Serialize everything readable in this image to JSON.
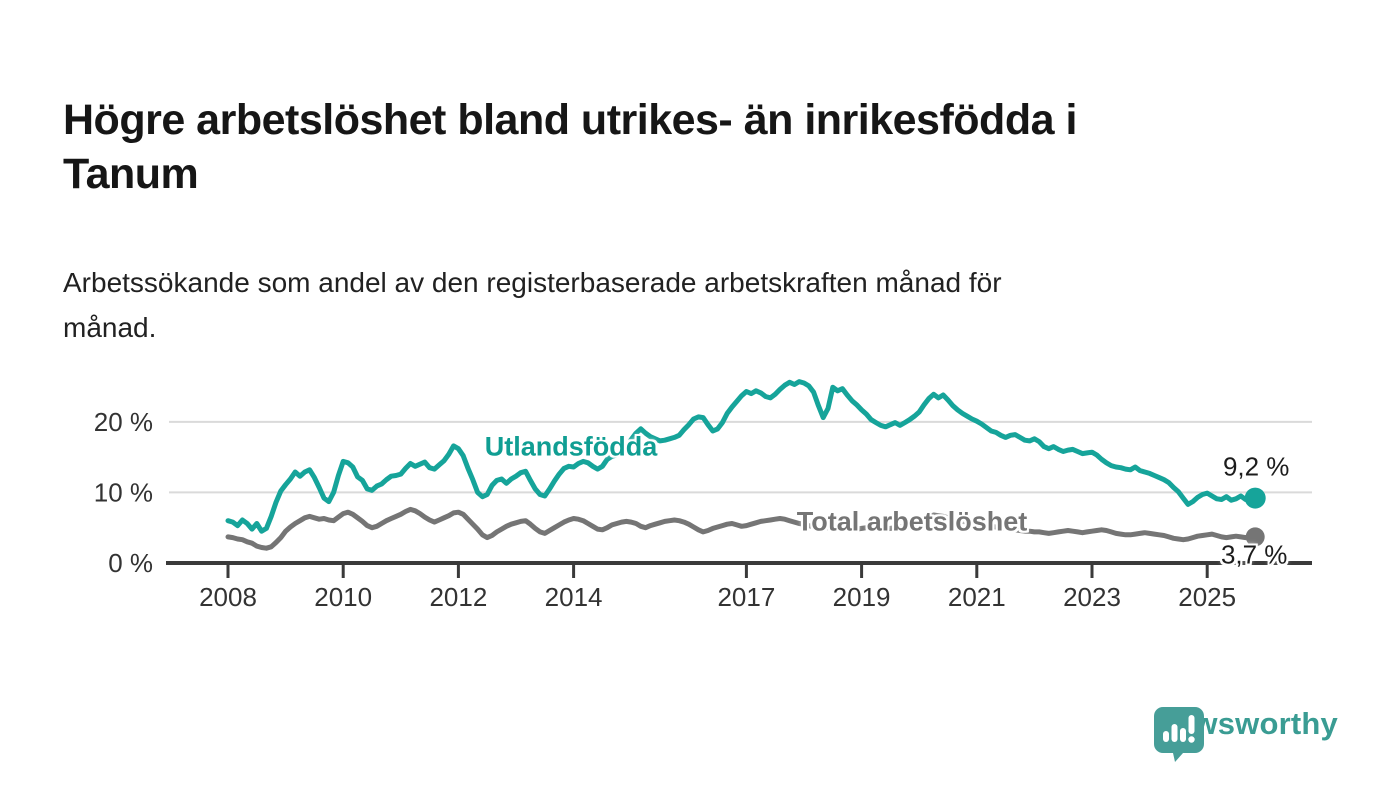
{
  "header": {
    "title_lines": [
      "Högre arbetslöshet bland utrikes- än inrikesfödda i",
      "Tanum"
    ],
    "subtitle_lines": [
      "Arbetssökande som andel av den registerbaserade arbetskraften månad för",
      "månad."
    ]
  },
  "footer": {
    "brand": "Newsworthy",
    "brand_color": "#3a9c93"
  },
  "chart_data": {
    "type": "line",
    "unit": "%",
    "grid": "horizontal-only",
    "legend_position": "inline-labels-on-lines",
    "x_range_years": [
      2008,
      2025.83
    ],
    "ylim": [
      0,
      27
    ],
    "x_ticks": [
      {
        "year": 2008,
        "label": "2008"
      },
      {
        "year": 2010,
        "label": "2010"
      },
      {
        "year": 2012,
        "label": "2012"
      },
      {
        "year": 2014,
        "label": "2014"
      },
      {
        "year": 2017,
        "label": "2017"
      },
      {
        "year": 2019,
        "label": "2019"
      },
      {
        "year": 2021,
        "label": "2021"
      },
      {
        "year": 2023,
        "label": "2023"
      },
      {
        "year": 2025,
        "label": "2025"
      }
    ],
    "y_ticks": [
      {
        "value": 0,
        "label": "0 %"
      },
      {
        "value": 10,
        "label": "10 %"
      },
      {
        "value": 20,
        "label": "20 %"
      }
    ],
    "colors": {
      "axis": "#3a3a3a",
      "gridline": "#dadada",
      "tick_label": "#333333"
    },
    "series": [
      {
        "name": "Utlandsfödda",
        "color": "#16a49a",
        "end_label": "9,2 %",
        "end_value": 9.2,
        "start_year": 2008,
        "points_per_year": 12,
        "values": [
          6.0,
          5.8,
          5.3,
          6.1,
          5.6,
          4.8,
          5.6,
          4.5,
          4.9,
          6.6,
          8.6,
          10.2,
          11.1,
          11.9,
          12.9,
          12.3,
          12.9,
          13.2,
          12.1,
          10.7,
          9.2,
          8.7,
          10.0,
          12.4,
          14.4,
          14.2,
          13.6,
          12.2,
          11.7,
          10.5,
          10.3,
          10.9,
          11.2,
          11.8,
          12.3,
          12.4,
          12.6,
          13.4,
          14.1,
          13.7,
          14.0,
          14.3,
          13.5,
          13.3,
          13.9,
          14.5,
          15.4,
          16.6,
          16.2,
          15.2,
          13.4,
          11.8,
          10.0,
          9.4,
          9.7,
          11.0,
          11.7,
          11.9,
          11.3,
          11.9,
          12.3,
          12.8,
          13.0,
          11.7,
          10.5,
          9.7,
          9.5,
          10.5,
          11.6,
          12.6,
          13.4,
          13.7,
          13.6,
          14.1,
          14.4,
          14.2,
          13.7,
          13.3,
          13.7,
          14.7,
          15.1,
          15.3,
          15.7,
          16.5,
          17.5,
          18.4,
          19.0,
          18.4,
          17.9,
          17.6,
          17.3,
          17.4,
          17.6,
          17.8,
          18.1,
          18.9,
          19.6,
          20.4,
          20.7,
          20.6,
          19.6,
          18.7,
          19.0,
          19.9,
          21.2,
          22.1,
          22.9,
          23.7,
          24.3,
          24.0,
          24.4,
          24.1,
          23.6,
          23.4,
          23.9,
          24.6,
          25.2,
          25.6,
          25.3,
          25.7,
          25.5,
          25.1,
          24.2,
          22.3,
          20.6,
          21.9,
          24.9,
          24.4,
          24.7,
          23.8,
          23.0,
          22.4,
          21.7,
          21.1,
          20.3,
          19.9,
          19.5,
          19.3,
          19.6,
          19.9,
          19.5,
          19.9,
          20.3,
          20.8,
          21.4,
          22.4,
          23.3,
          23.9,
          23.4,
          23.8,
          23.1,
          22.3,
          21.7,
          21.2,
          20.8,
          20.4,
          20.1,
          19.7,
          19.2,
          18.7,
          18.5,
          18.1,
          17.8,
          18.1,
          18.2,
          17.8,
          17.4,
          17.3,
          17.6,
          17.2,
          16.5,
          16.2,
          16.5,
          16.1,
          15.8,
          16.0,
          16.1,
          15.8,
          15.5,
          15.6,
          15.7,
          15.3,
          14.7,
          14.2,
          13.8,
          13.6,
          13.5,
          13.3,
          13.2,
          13.6,
          13.1,
          12.9,
          12.7,
          12.4,
          12.1,
          11.8,
          11.4,
          10.7,
          10.1,
          9.2,
          8.3,
          8.7,
          9.3,
          9.7,
          9.9,
          9.5,
          9.1,
          9.0,
          9.4,
          8.9,
          9.1,
          9.5,
          9.0,
          9.1,
          9.2
        ]
      },
      {
        "name": "Total arbetslöshet",
        "color": "#757575",
        "end_label": "3,7 %",
        "end_value": 3.7,
        "start_year": 2008,
        "points_per_year": 12,
        "values": [
          3.7,
          3.6,
          3.4,
          3.3,
          3.0,
          2.8,
          2.4,
          2.2,
          2.1,
          2.3,
          2.9,
          3.6,
          4.5,
          5.1,
          5.6,
          6.0,
          6.4,
          6.6,
          6.4,
          6.2,
          6.3,
          6.1,
          6.0,
          6.5,
          7.0,
          7.2,
          6.9,
          6.4,
          5.9,
          5.3,
          5.0,
          5.2,
          5.6,
          6.0,
          6.3,
          6.6,
          6.9,
          7.3,
          7.6,
          7.4,
          7.0,
          6.5,
          6.1,
          5.8,
          6.1,
          6.4,
          6.7,
          7.1,
          7.2,
          6.9,
          6.2,
          5.5,
          4.8,
          4.0,
          3.6,
          3.9,
          4.4,
          4.8,
          5.2,
          5.5,
          5.7,
          5.9,
          6.0,
          5.5,
          4.9,
          4.4,
          4.2,
          4.6,
          5.0,
          5.4,
          5.8,
          6.1,
          6.3,
          6.2,
          6.0,
          5.6,
          5.2,
          4.8,
          4.7,
          5.0,
          5.4,
          5.6,
          5.8,
          5.9,
          5.8,
          5.6,
          5.2,
          5.0,
          5.3,
          5.5,
          5.7,
          5.9,
          6.0,
          6.1,
          6.0,
          5.8,
          5.5,
          5.1,
          4.7,
          4.4,
          4.6,
          4.9,
          5.1,
          5.3,
          5.5,
          5.6,
          5.4,
          5.2,
          5.3,
          5.5,
          5.7,
          5.9,
          6.0,
          6.1,
          6.2,
          6.3,
          6.2,
          6.0,
          5.8,
          5.6,
          5.5,
          5.3,
          5.1,
          5.0,
          4.9,
          5.0,
          5.2,
          5.3,
          5.2,
          5.0,
          4.9,
          4.8,
          4.9,
          5.0,
          5.1,
          5.0,
          4.9,
          4.8,
          4.9,
          5.0,
          5.1,
          5.2,
          5.3,
          5.5,
          5.8,
          6.1,
          6.5,
          6.8,
          6.7,
          6.6,
          6.4,
          6.2,
          6.0,
          5.9,
          5.8,
          5.7,
          5.6,
          5.5,
          5.4,
          5.2,
          5.1,
          5.0,
          4.9,
          4.8,
          4.7,
          4.6,
          4.5,
          4.5,
          4.4,
          4.4,
          4.3,
          4.2,
          4.3,
          4.4,
          4.5,
          4.6,
          4.5,
          4.4,
          4.3,
          4.4,
          4.5,
          4.6,
          4.7,
          4.6,
          4.4,
          4.2,
          4.1,
          4.0,
          4.0,
          4.1,
          4.2,
          4.3,
          4.2,
          4.1,
          4.0,
          3.9,
          3.7,
          3.5,
          3.4,
          3.3,
          3.4,
          3.6,
          3.8,
          3.9,
          4.0,
          4.1,
          3.9,
          3.7,
          3.6,
          3.7,
          3.8,
          3.7,
          3.6,
          3.7,
          3.7
        ]
      }
    ]
  }
}
